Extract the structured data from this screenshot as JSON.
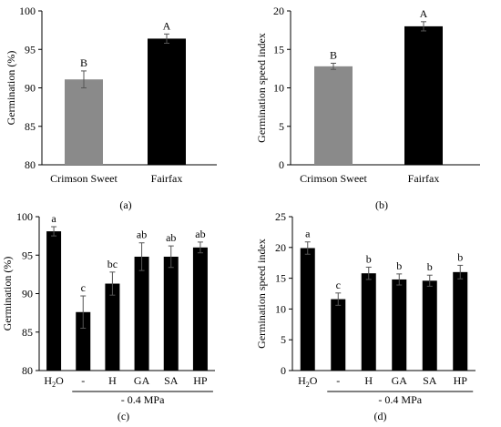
{
  "chart_data": [
    {
      "type": "bar",
      "panel_label": "(a)",
      "ylabel": "Germination (%)",
      "ylim": [
        80,
        100
      ],
      "yticks": [
        80,
        85,
        90,
        95,
        100
      ],
      "categories": [
        "Crimson Sweet",
        "Fairfax"
      ],
      "values": [
        91.1,
        96.4
      ],
      "errors": [
        1.1,
        0.6
      ],
      "letters": [
        "B",
        "A"
      ],
      "colors": [
        "#8a8a8a",
        "#000000"
      ]
    },
    {
      "type": "bar",
      "panel_label": "(b)",
      "ylabel": "Germination speed index",
      "ylim": [
        0,
        20
      ],
      "yticks": [
        0,
        5,
        10,
        15,
        20
      ],
      "categories": [
        "Crimson Sweet",
        "Fairfax"
      ],
      "values": [
        12.8,
        18.0
      ],
      "errors": [
        0.4,
        0.6
      ],
      "letters": [
        "B",
        "A"
      ],
      "colors": [
        "#8a8a8a",
        "#000000"
      ]
    },
    {
      "type": "bar",
      "panel_label": "(c)",
      "ylabel": "Germination (%)",
      "ylim": [
        80,
        100
      ],
      "yticks": [
        80,
        85,
        90,
        95,
        100
      ],
      "categories": [
        "H2O",
        "-",
        "H",
        "GA",
        "SA",
        "HP"
      ],
      "values": [
        98.1,
        87.6,
        91.3,
        94.8,
        94.8,
        96.0
      ],
      "errors": [
        0.6,
        2.1,
        1.5,
        1.8,
        1.4,
        0.7
      ],
      "letters": [
        "a",
        "c",
        "bc",
        "ab",
        "ab",
        "ab"
      ],
      "colors": [
        "#000000",
        "#000000",
        "#000000",
        "#000000",
        "#000000",
        "#000000"
      ],
      "group_label": "- 0.4 MPa"
    },
    {
      "type": "bar",
      "panel_label": "(d)",
      "ylabel": "Germination speed index",
      "ylim": [
        0,
        25
      ],
      "yticks": [
        0,
        5,
        10,
        15,
        20,
        25
      ],
      "categories": [
        "H2O",
        "-",
        "H",
        "GA",
        "SA",
        "HP"
      ],
      "values": [
        19.9,
        11.6,
        15.8,
        14.8,
        14.6,
        16.0
      ],
      "errors": [
        1.0,
        1.0,
        1.0,
        0.9,
        0.9,
        1.1
      ],
      "letters": [
        "a",
        "c",
        "b",
        "b",
        "b",
        "b"
      ],
      "colors": [
        "#000000",
        "#000000",
        "#000000",
        "#000000",
        "#000000",
        "#000000"
      ],
      "group_label": "- 0.4 MPa"
    }
  ]
}
